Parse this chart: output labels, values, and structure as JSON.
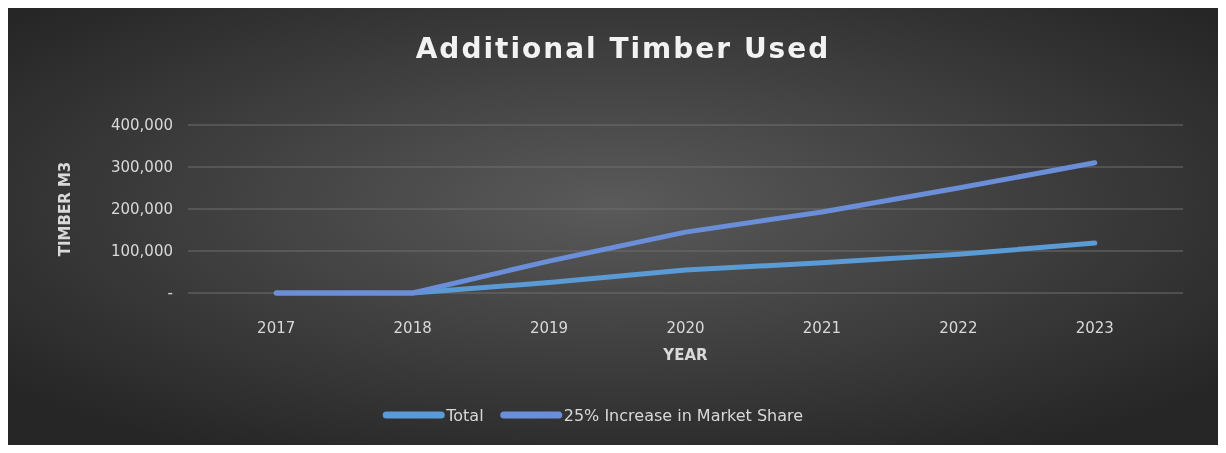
{
  "chart_data": {
    "type": "line",
    "title": "Additional Timber Used",
    "xlabel": "YEAR",
    "ylabel": "TIMBER M3",
    "categories": [
      "2017",
      "2018",
      "2019",
      "2020",
      "2021",
      "2022",
      "2023"
    ],
    "series": [
      {
        "name": "Total",
        "color": "#5b9bd5",
        "values": [
          0,
          0,
          25000,
          55000,
          72000,
          92000,
          119000
        ]
      },
      {
        "name": "25% Increase in Market Share",
        "color": "#6a8ed8",
        "values": [
          0,
          0,
          76000,
          145000,
          193000,
          250000,
          310000
        ]
      }
    ],
    "ylim": [
      0,
      400000
    ],
    "yticks": [
      {
        "value": 0,
        "label": "-"
      },
      {
        "value": 100000,
        "label": "100,000"
      },
      {
        "value": 200000,
        "label": "200,000"
      },
      {
        "value": 300000,
        "label": "300,000"
      },
      {
        "value": 400000,
        "label": "400,000"
      }
    ],
    "grid": "y",
    "legend": "bottom"
  }
}
